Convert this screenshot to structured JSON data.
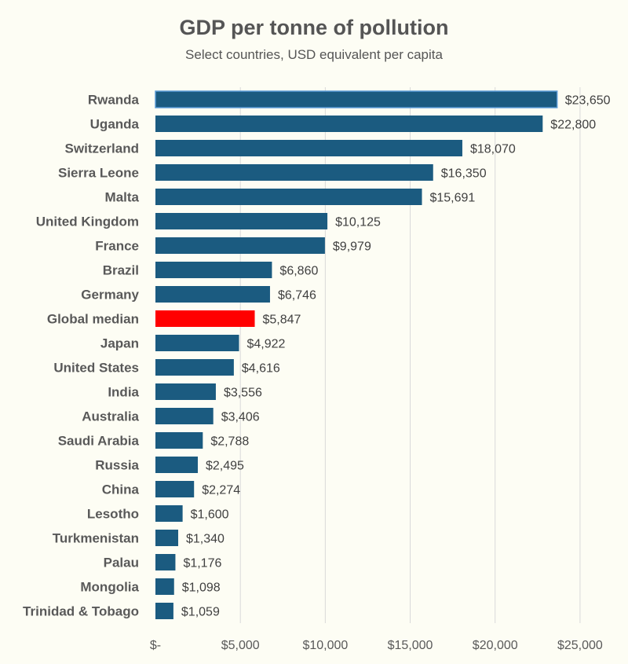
{
  "colors": {
    "bar": "#1b5b80",
    "highlight": "#ff0000",
    "grid": "#d9d9d9",
    "background": "#fdfdf4"
  },
  "chart_data": {
    "type": "bar",
    "orientation": "horizontal",
    "title": "GDP per tonne of pollution",
    "subtitle": "Select countries, USD equivalent per capita",
    "xlabel": "",
    "ylabel": "",
    "xlim": [
      0,
      27500
    ],
    "grid": "vertical",
    "categories": [
      "Rwanda",
      "Uganda",
      "Switzerland",
      "Sierra Leone",
      "Malta",
      "United Kingdom",
      "France",
      "Brazil",
      "Germany",
      "Global median",
      "Japan",
      "United States",
      "India",
      "Australia",
      "Saudi Arabia",
      "Russia",
      "China",
      "Lesotho",
      "Turkmenistan",
      "Palau",
      "Mongolia",
      "Trinidad & Tobago"
    ],
    "values": [
      23650,
      22800,
      18070,
      16350,
      15691,
      10125,
      9979,
      6860,
      6746,
      5847,
      4922,
      4616,
      3556,
      3406,
      2788,
      2495,
      2274,
      1600,
      1340,
      1176,
      1098,
      1059
    ],
    "value_labels": [
      "$23,650",
      "$22,800",
      "$18,070",
      "$16,350",
      "$15,691",
      "$10,125",
      "$9,979",
      "$6,860",
      "$6,746",
      "$5,847",
      "$4,922",
      "$4,616",
      "$3,556",
      "$3,406",
      "$2,788",
      "$2,495",
      "$2,274",
      "$1,600",
      "$1,340",
      "$1,176",
      "$1,098",
      "$1,059"
    ],
    "highlight_category": "Global median",
    "x_ticks": [
      0,
      5000,
      10000,
      15000,
      20000,
      25000
    ],
    "x_tick_labels": [
      "$-",
      "$5,000",
      "$10,000",
      "$15,000",
      "$20,000",
      "$25,000"
    ]
  }
}
